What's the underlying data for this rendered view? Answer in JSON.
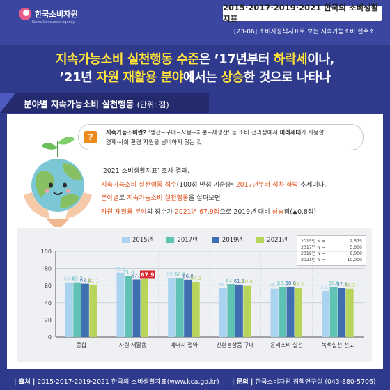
{
  "header": {
    "logo_ko": "한국소비자원",
    "logo_en": "Korea Consumer Agency",
    "series_title": "2015·2017·2019·2021 한국의 소비생활지표",
    "sub_title": "[23-06] 소비자정책지표로 보는 지속가능소비 현주소"
  },
  "headline": {
    "line1": {
      "a": "지속가능소비 실천행동 수준",
      "b": "은 ’17년부터 ",
      "c": "하락세",
      "d": "이나,"
    },
    "line2": {
      "a": "’21년 ",
      "b": "자원 재활용 분야",
      "c": "에서는 ",
      "d": "상승",
      "e": "한 것으로 나타나"
    }
  },
  "section": {
    "title": "분야별 지속가능소비 실천행동",
    "unit": "(단위: 점)"
  },
  "definition": {
    "term": "지속가능소비란?",
    "p1": " ‘생산~구매~사용~처분~재생산’ 등 소비 전과정에서 ",
    "p2": "미래세대",
    "p3": "가 사용할",
    "line2": "경제·사회·환경 자원을 낭비하지 않는 것"
  },
  "survey": {
    "l1": "‘2021 소비생활지표’ 조사 결과,",
    "l2a": "지속가능소비 실천행동 점수",
    "l2b": "(100점 만점 기준)는 ",
    "l2c": "2017년부터 점차 하락",
    "l2d": " 추세이나,",
    "l3a": "분야별",
    "l3b": "로 ",
    "l3c": "지속가능소비 실천행동",
    "l3d": "을 살펴보면",
    "l4a": "자원 재활용 분야",
    "l4b": "의 점수가 ",
    "l4c": "2021년 67.9점",
    "l4d": "으로 2019년 대비 ",
    "l4e": "상승",
    "l4f": "함(▲0.8점)"
  },
  "sample_sizes": [
    {
      "label": "2015년 N =",
      "value": "2,575"
    },
    {
      "label": "2017년 N =",
      "value": "5,000"
    },
    {
      "label": "2019년 N =",
      "value": "8,000"
    },
    {
      "label": "2021년 N =",
      "value": "10,000"
    }
  ],
  "chart_data": {
    "type": "bar",
    "title": "",
    "xlabel": "",
    "ylabel": "",
    "ylim": [
      0,
      100
    ],
    "yticks": [
      "0",
      "20",
      "40",
      "60",
      "80",
      "100"
    ],
    "categories": [
      "종합",
      "자원 재활용",
      "에너지 절약",
      "친환경상품 구매",
      "윤리소비 실천",
      "녹색실천 선도"
    ],
    "series": [
      {
        "name": "2015년",
        "color": "#a9d3ef",
        "values": [
          63.7,
          75.0,
          69.1,
          56.9,
          56.4,
          53.7
        ],
        "labels": [
          "63.7",
          "75.0",
          "69.1",
          "56.9",
          "56.4",
          "53.7"
        ]
      },
      {
        "name": "2017년",
        "color": "#5fc2b4",
        "values": [
          63.7,
          71.0,
          68.9,
          61.7,
          58.5,
          58.6
        ],
        "labels": [
          "63.7",
          "71.0",
          "68.9",
          "61.7",
          "58.5",
          "58.6"
        ]
      },
      {
        "name": "2019년",
        "color": "#3f6fb0",
        "values": [
          62.1,
          67.1,
          66.8,
          61.1,
          58.6,
          57.3
        ],
        "labels": [
          "62.1",
          "67.1",
          "66.8",
          "61.1",
          "58.6",
          "57.3"
        ]
      },
      {
        "name": "2021년",
        "color": "#b6d55a",
        "values": [
          61.1,
          67.9,
          64.3,
          60.4,
          57.2,
          56.3
        ],
        "labels": [
          "61.1",
          "67.9",
          "64.3",
          "60.4",
          "57.2",
          "56.3"
        ]
      }
    ],
    "highlight": {
      "category_index": 1,
      "series_index": 3,
      "color": "#d9262c"
    },
    "grid": true,
    "legend": "top"
  },
  "footer": {
    "source_label": "| 출처 |",
    "source_text": " 2015·2017·2019·2021 한국의 소비생활지표(www.kca.go.kr)",
    "contact_label": "| 문의 |",
    "contact_text": " 한국소비자원 정책연구실 (043-880-5706)"
  },
  "colors": {
    "background": "#2f3a8c",
    "accent_yellow": "#ffe33b",
    "orange": "#e2541e",
    "green": "#2f8f6b"
  },
  "icons": {
    "logo": "kca-logo-icon",
    "question": "question-icon",
    "globe": "globe-hands-icon"
  }
}
